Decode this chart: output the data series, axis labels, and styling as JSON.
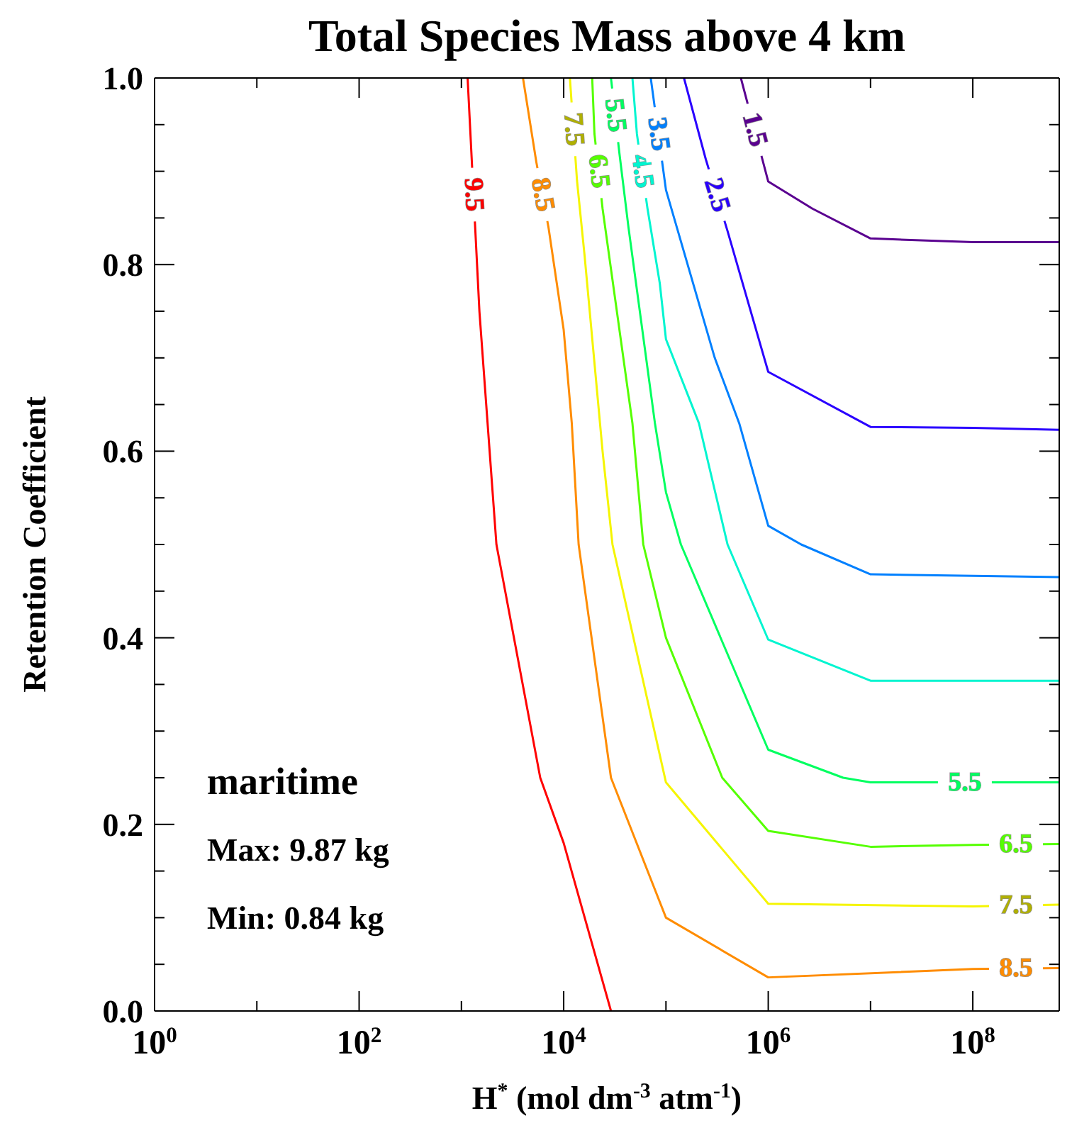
{
  "chart_data": {
    "type": "line",
    "title": "Total Species Mass above 4 km",
    "xlabel": "H$^{*}$ (mol dm$^{-3}$ atm$^{-1}$)",
    "ylabel": "Retention Coefficient",
    "log": "x",
    "marker": "none",
    "xlim": [
      1,
      700000000
    ],
    "ylim": [
      0,
      1
    ],
    "xticks": [
      {
        "value": 1,
        "label": "10$^{0}$"
      },
      {
        "value": 10,
        "label": null
      },
      {
        "value": 100,
        "label": "10$^{2}$"
      },
      {
        "value": 1000,
        "label": null
      },
      {
        "value": 10000,
        "label": "10$^{4}$"
      },
      {
        "value": 100000,
        "label": null
      },
      {
        "value": 1000000,
        "label": "10$^{6}$"
      },
      {
        "value": 10000000,
        "label": null
      },
      {
        "value": 100000000,
        "label": "10$^{8}$"
      }
    ],
    "yticks": [
      {
        "value": 0,
        "label": "0.0"
      },
      {
        "value": 0.05,
        "label": null
      },
      {
        "value": 0.1,
        "label": null
      },
      {
        "value": 0.15,
        "label": null
      },
      0.2,
      {
        "value": 0.25,
        "label": null
      },
      {
        "value": 0.3,
        "label": null
      },
      {
        "value": 0.35,
        "label": null
      },
      0.4,
      {
        "value": 0.45,
        "label": null
      },
      {
        "value": 0.5,
        "label": null
      },
      {
        "value": 0.55,
        "label": null
      },
      0.6,
      {
        "value": 0.65,
        "label": null
      },
      {
        "value": 0.7,
        "label": null
      },
      {
        "value": 0.75,
        "label": null
      },
      0.8,
      {
        "value": 0.85,
        "label": null
      },
      {
        "value": 0.9,
        "label": null
      },
      {
        "value": 0.95,
        "label": null
      },
      {
        "value": 1,
        "label": "1.0"
      }
    ],
    "annotations": [
      "maritime",
      "Max: 9.87 kg",
      "Min: 0.84 kg"
    ],
    "series": [
      {
        "name": "9.5",
        "color": "#ff0000",
        "x": [
          1150,
          1500,
          2200,
          5900,
          10000,
          29000
        ],
        "values": [
          1.0,
          0.75,
          0.5,
          0.25,
          0.18,
          0.0
        ]
      },
      {
        "name": "8.5",
        "color": "#ff8c00",
        "x": [
          4000,
          5400,
          7100,
          10000,
          12000,
          14000,
          29000,
          100000,
          1000000,
          100000000,
          700000000
        ],
        "values": [
          1.0,
          0.91,
          0.84,
          0.73,
          0.63,
          0.5,
          0.25,
          0.1,
          0.036,
          0.045,
          0.046
        ]
      },
      {
        "name": "7.5",
        "color": "#f5f500",
        "x": [
          11500,
          13500,
          16000,
          24000,
          30000,
          100000,
          1000000,
          100000000,
          700000000
        ],
        "values": [
          1.0,
          0.89,
          0.81,
          0.6,
          0.5,
          0.245,
          0.115,
          0.112,
          0.114
        ]
      },
      {
        "name": "6.5",
        "color": "#55ff00",
        "x": [
          19000,
          20000,
          24000,
          47000,
          60000,
          100000,
          355000,
          1000000,
          10000000,
          100000000,
          700000000
        ],
        "values": [
          1.0,
          0.94,
          0.86,
          0.63,
          0.5,
          0.4,
          0.25,
          0.193,
          0.176,
          0.178,
          0.179
        ]
      },
      {
        "name": "5.5",
        "color": "#00ff60",
        "x": [
          29000,
          35000,
          43000,
          78000,
          100000,
          140000,
          1000000,
          5400000,
          10000000,
          700000000
        ],
        "values": [
          1.0,
          0.92,
          0.84,
          0.63,
          0.556,
          0.5,
          0.28,
          0.25,
          0.245,
          0.245
        ]
      },
      {
        "name": "4.5",
        "color": "#00f5d0",
        "x": [
          47000,
          52000,
          66000,
          87000,
          100000,
          210000,
          400000,
          1000000,
          10000000,
          700000000
        ],
        "values": [
          1.0,
          0.94,
          0.86,
          0.78,
          0.72,
          0.63,
          0.5,
          0.398,
          0.354,
          0.354
        ]
      },
      {
        "name": "3.5",
        "color": "#0080ff",
        "x": [
          71000,
          100000,
          300000,
          520000,
          1000000,
          2100000,
          10000000,
          700000000
        ],
        "values": [
          1.0,
          0.88,
          0.7,
          0.63,
          0.52,
          0.5,
          0.468,
          0.465
        ]
      },
      {
        "name": "2.5",
        "color": "#2a00ff",
        "x": [
          150000,
          245000,
          400000,
          1000000,
          10000000,
          100000000,
          700000000
        ],
        "values": [
          1.0,
          0.913,
          0.836,
          0.685,
          0.626,
          0.625,
          0.623
        ]
      },
      {
        "name": "1.5",
        "color": "#5a0090",
        "x": [
          540000,
          1000000,
          2700000,
          10000000,
          100000000,
          700000000
        ],
        "values": [
          1.0,
          0.889,
          0.86,
          0.828,
          0.824,
          0.824
        ]
      }
    ]
  }
}
